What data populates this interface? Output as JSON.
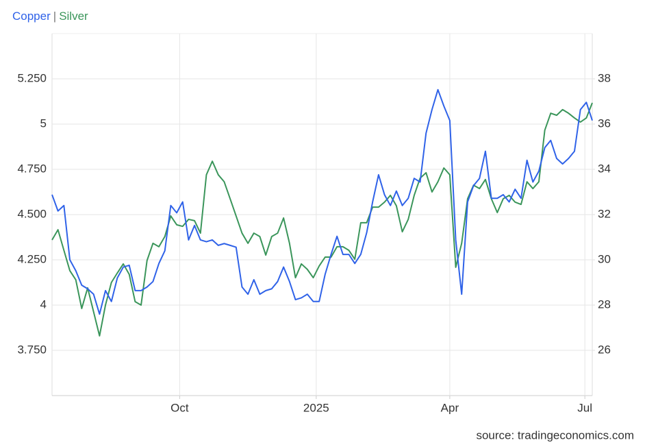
{
  "chart_data": {
    "type": "line",
    "legend_separator": "|",
    "source": "source: tradingeconomics.com",
    "x": [
      0,
      4,
      8,
      12,
      16,
      20,
      24,
      28,
      32,
      36,
      40,
      44,
      48,
      52,
      56,
      60,
      64,
      68,
      72,
      76,
      80,
      84,
      88,
      92,
      96,
      100,
      104,
      108,
      112,
      116,
      120,
      124,
      128,
      132,
      136,
      140,
      144,
      148,
      152,
      156,
      160,
      164,
      168,
      172,
      176,
      180,
      184,
      188,
      192,
      196,
      200,
      204,
      208,
      212,
      216,
      220,
      224,
      228,
      232,
      236,
      240,
      244,
      248,
      252,
      256,
      260,
      264,
      268,
      272,
      276,
      280,
      284,
      288,
      292,
      296,
      300,
      304,
      308,
      312,
      316,
      320,
      324,
      328,
      332,
      336,
      340,
      344,
      348,
      352,
      356,
      360,
      364
    ],
    "xlim": [
      0,
      364
    ],
    "xticks": [
      {
        "value": 86,
        "label": "Oct"
      },
      {
        "value": 178,
        "label": "2025"
      },
      {
        "value": 268,
        "label": "Apr"
      },
      {
        "value": 359,
        "label": "Jul"
      }
    ],
    "ylim": [
      3.5,
      5.5
    ],
    "yticks": [
      {
        "value": 3.75,
        "label": "3.750"
      },
      4,
      {
        "value": 4.25,
        "label": "4.250"
      },
      {
        "value": 4.5,
        "label": "4.500"
      },
      {
        "value": 4.75,
        "label": "4.750"
      },
      5,
      {
        "value": 5.25,
        "label": "5.250"
      }
    ],
    "y2lim": [
      24,
      40
    ],
    "y2ticks": [
      26,
      28,
      30,
      32,
      34,
      36,
      38
    ],
    "grid": true,
    "series": [
      {
        "name": "Copper",
        "color": "#2f62e8",
        "values": [
          4.61,
          4.52,
          4.55,
          4.25,
          4.19,
          4.11,
          4.09,
          4.06,
          3.95,
          4.08,
          4.02,
          4.15,
          4.21,
          4.22,
          4.08,
          4.08,
          4.1,
          4.13,
          4.23,
          4.3,
          4.55,
          4.51,
          4.57,
          4.36,
          4.44,
          4.36,
          4.35,
          4.36,
          4.33,
          4.34,
          4.33,
          4.32,
          4.1,
          4.06,
          4.14,
          4.06,
          4.08,
          4.09,
          4.13,
          4.21,
          4.13,
          4.03,
          4.04,
          4.06,
          4.02,
          4.02,
          4.17,
          4.28,
          4.38,
          4.28,
          4.28,
          4.23,
          4.28,
          4.4,
          4.57,
          4.72,
          4.61,
          4.55,
          4.63,
          4.55,
          4.59,
          4.7,
          4.68,
          4.95,
          5.08,
          5.19,
          5.1,
          5.02,
          4.36,
          4.06,
          4.57,
          4.66,
          4.7,
          4.85,
          4.59,
          4.59,
          4.61,
          4.57,
          4.64,
          4.59,
          4.8,
          4.68,
          4.74,
          4.87,
          4.91,
          4.81,
          4.78,
          4.81,
          4.85,
          5.08,
          5.12,
          5.02
        ]
      },
      {
        "name": "Silver",
        "color": "#3a955a",
        "axis": "y2",
        "values": [
          30.88,
          31.33,
          30.42,
          29.52,
          29.12,
          27.85,
          28.76,
          27.7,
          26.64,
          28.0,
          29.0,
          29.42,
          29.82,
          29.36,
          28.15,
          28.0,
          29.97,
          30.73,
          30.58,
          31.03,
          31.94,
          31.55,
          31.48,
          31.79,
          31.73,
          31.18,
          33.76,
          34.36,
          33.76,
          33.45,
          32.7,
          31.94,
          31.18,
          30.73,
          31.18,
          31.03,
          30.21,
          31.03,
          31.18,
          31.85,
          30.73,
          29.21,
          29.82,
          29.58,
          29.21,
          29.73,
          30.12,
          30.12,
          30.58,
          30.58,
          30.42,
          30.03,
          31.64,
          31.64,
          32.33,
          32.33,
          32.55,
          32.85,
          32.39,
          31.24,
          31.79,
          32.85,
          33.61,
          33.85,
          33.0,
          33.45,
          34.06,
          33.76,
          29.67,
          30.73,
          32.7,
          33.3,
          33.15,
          33.55,
          32.7,
          32.09,
          32.7,
          32.85,
          32.55,
          32.45,
          33.45,
          33.15,
          33.45,
          35.73,
          36.48,
          36.39,
          36.64,
          36.48,
          36.27,
          36.09,
          36.27,
          36.94
        ]
      }
    ]
  }
}
